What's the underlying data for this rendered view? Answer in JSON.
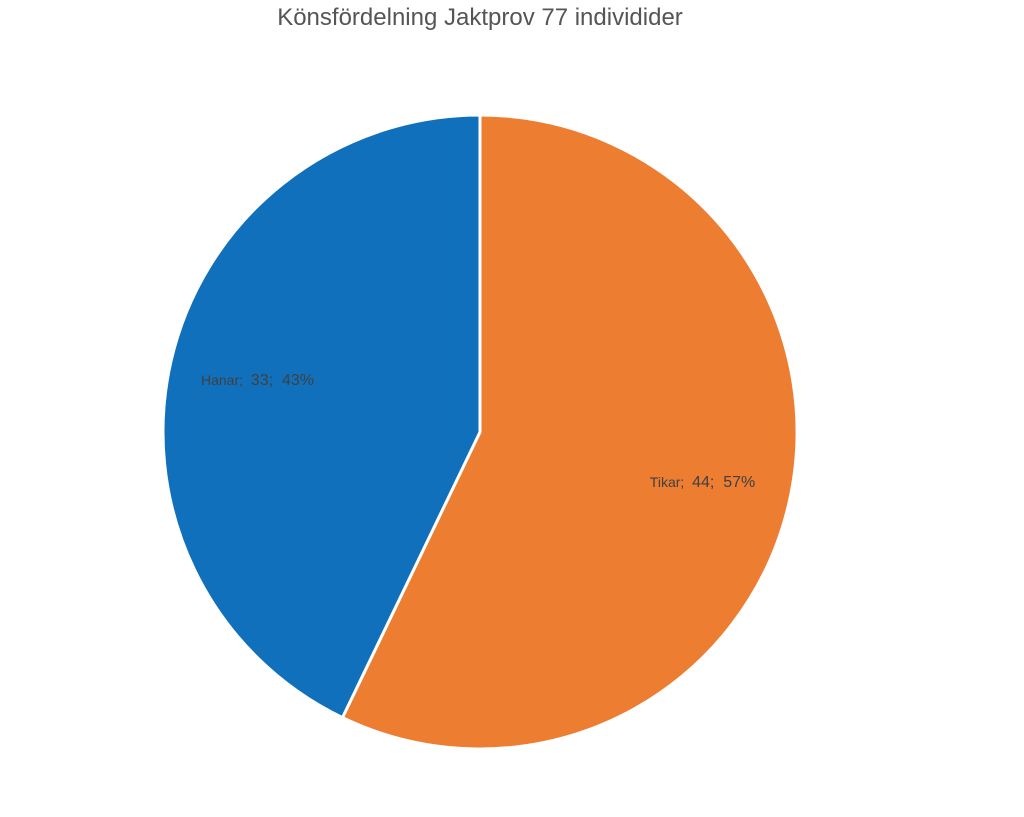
{
  "chart_data": {
    "type": "pie",
    "title": "Könsfördelning Jaktprov 77 individider",
    "slices": [
      {
        "name": "Tikar",
        "value": 44,
        "percent": "57%",
        "color": "#ED7D31"
      },
      {
        "name": "Hanar",
        "value": 33,
        "percent": "43%",
        "color": "#1170BB"
      }
    ],
    "start_angle_deg": 0,
    "direction": "clockwise",
    "data_labels": true,
    "legend": "none"
  }
}
